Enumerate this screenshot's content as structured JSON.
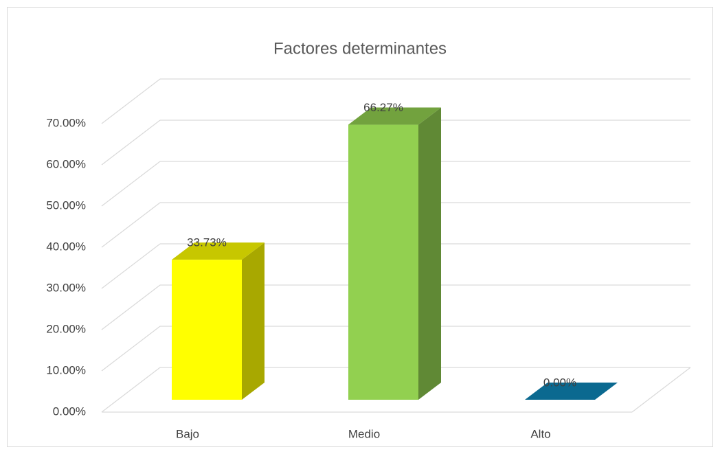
{
  "chart_data": {
    "type": "bar3d",
    "title": "Factores determinantes",
    "categories": [
      "Bajo",
      "Medio",
      "Alto"
    ],
    "values": [
      33.73,
      66.27,
      0
    ],
    "value_labels": [
      "33.73%",
      "66.27%",
      "0.00%"
    ],
    "colors": [
      "#ffff00",
      "#92d050",
      "#0e86b8"
    ],
    "ylim": [
      0,
      70
    ],
    "yticks": [
      {
        "value": 0,
        "label": "0.00%"
      },
      {
        "value": 10,
        "label": "10.00%"
      },
      {
        "value": 20,
        "label": "20.00%"
      },
      {
        "value": 30,
        "label": "30.00%"
      },
      {
        "value": 40,
        "label": "40.00%"
      },
      {
        "value": 50,
        "label": "50.00%"
      },
      {
        "value": 60,
        "label": "60.00%"
      },
      {
        "value": 70,
        "label": "70.00%"
      }
    ],
    "grid": true
  }
}
